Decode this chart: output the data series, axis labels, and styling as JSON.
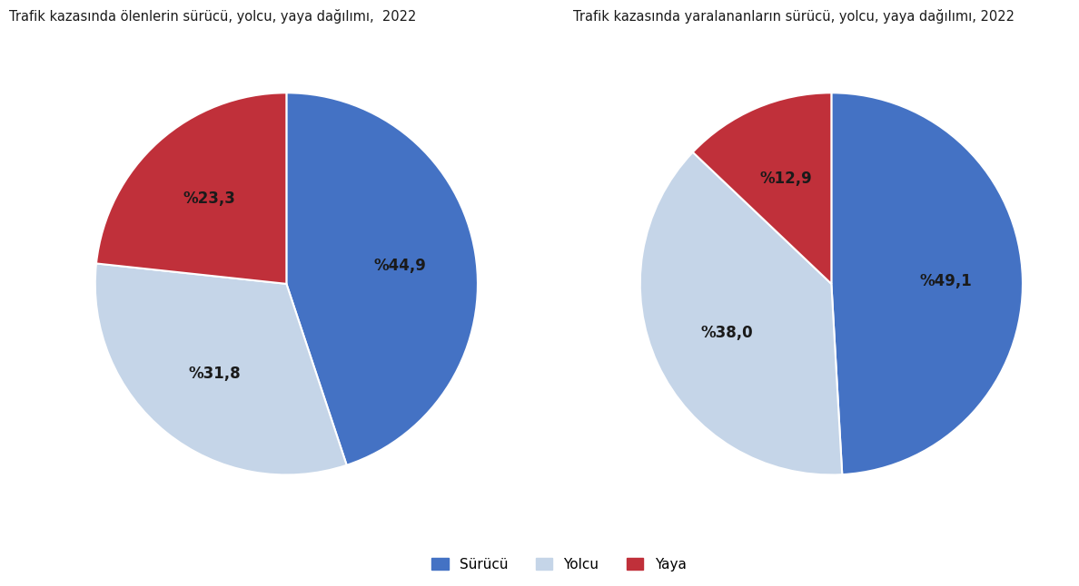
{
  "chart1": {
    "title": "Trafik kazasında ölenlerin sürücü, yolcu, yaya dağılımı,  2022",
    "values": [
      44.9,
      31.8,
      23.3
    ],
    "labels": [
      "%44,9",
      "%31,8",
      "%23,3"
    ],
    "colors": [
      "#4472C4",
      "#C5D5E8",
      "#C0303A"
    ],
    "startangle": 90
  },
  "chart2": {
    "title": "Trafik kazasında yaralananların sürücü, yolcu, yaya dağılımı, 2022",
    "values": [
      49.1,
      38.0,
      12.9
    ],
    "labels": [
      "%49,1",
      "%38,0",
      "%12,9"
    ],
    "colors": [
      "#4472C4",
      "#C5D5E8",
      "#C0303A"
    ],
    "startangle": 90
  },
  "legend_labels": [
    "Sürücü",
    "Yolcu",
    "Yaya"
  ],
  "legend_colors": [
    "#4472C4",
    "#C5D5E8",
    "#C0303A"
  ],
  "background_color": "#FFFFFF",
  "title_fontsize": 10.5,
  "label_fontsize": 12,
  "legend_fontsize": 11
}
